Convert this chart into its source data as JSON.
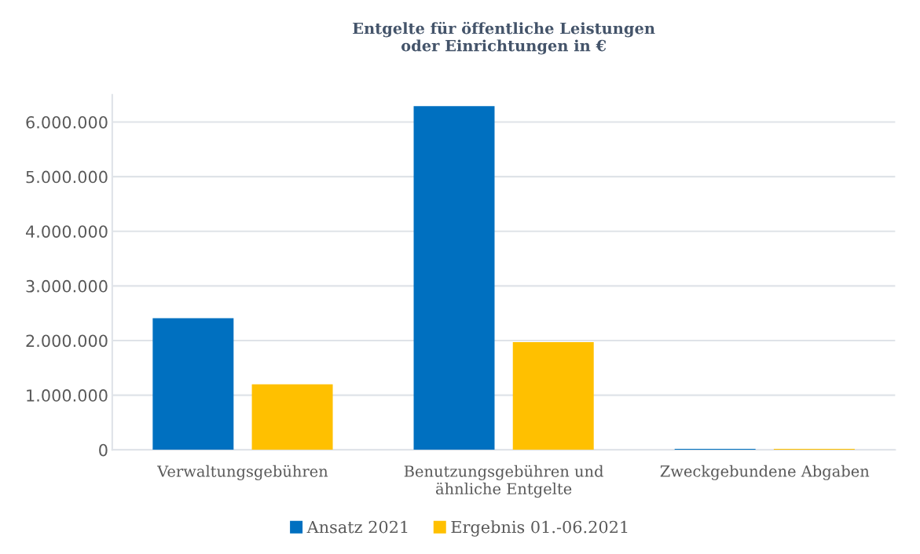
{
  "chart_data": {
    "type": "bar",
    "title": "Entgelte für öffentliche Leistungen\noder Einrichtungen in €",
    "categories": [
      "Verwaltungsgebühren",
      "Benutzungsgebühren und\nähnliche Entgelte",
      "Zweckgebundene Abgaben"
    ],
    "series": [
      {
        "name": "Ansatz 2021",
        "color": "#0070c0",
        "values": [
          2410000,
          6290000,
          20000
        ]
      },
      {
        "name": "Ergebnis 01.-06.2021",
        "color": "#ffc000",
        "values": [
          1200000,
          1970000,
          20000
        ]
      }
    ],
    "ylim": [
      0,
      6500000
    ],
    "yticks": [
      {
        "value": 0,
        "label": "0"
      },
      {
        "value": 1000000,
        "label": "1.000.000"
      },
      {
        "value": 2000000,
        "label": "2.000.000"
      },
      {
        "value": 3000000,
        "label": "3.000.000"
      },
      {
        "value": 4000000,
        "label": "4.000.000"
      },
      {
        "value": 5000000,
        "label": "5.000.000"
      },
      {
        "value": 6000000,
        "label": "6.000.000"
      }
    ],
    "grid": "y",
    "legend": "bottom"
  }
}
